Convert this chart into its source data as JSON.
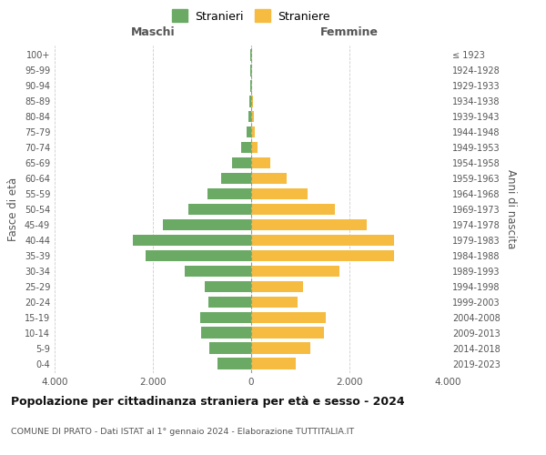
{
  "age_groups": [
    "0-4",
    "5-9",
    "10-14",
    "15-19",
    "20-24",
    "25-29",
    "30-34",
    "35-39",
    "40-44",
    "45-49",
    "50-54",
    "55-59",
    "60-64",
    "65-69",
    "70-74",
    "75-79",
    "80-84",
    "85-89",
    "90-94",
    "95-99",
    "100+"
  ],
  "birth_years": [
    "2019-2023",
    "2014-2018",
    "2009-2013",
    "2004-2008",
    "1999-2003",
    "1994-1998",
    "1989-1993",
    "1984-1988",
    "1979-1983",
    "1974-1978",
    "1969-1973",
    "1964-1968",
    "1959-1963",
    "1954-1958",
    "1949-1953",
    "1944-1948",
    "1939-1943",
    "1934-1938",
    "1929-1933",
    "1924-1928",
    "≤ 1923"
  ],
  "males": [
    680,
    850,
    1020,
    1030,
    870,
    940,
    1350,
    2150,
    2400,
    1800,
    1280,
    890,
    620,
    380,
    200,
    90,
    60,
    30,
    15,
    10,
    10
  ],
  "females": [
    900,
    1200,
    1480,
    1520,
    940,
    1050,
    1800,
    2900,
    2900,
    2350,
    1700,
    1150,
    730,
    380,
    130,
    80,
    60,
    30,
    15,
    10,
    10
  ],
  "male_color": "#6aaa64",
  "female_color": "#f5bc41",
  "background_color": "#ffffff",
  "grid_color": "#cccccc",
  "title": "Popolazione per cittadinanza straniera per età e sesso - 2024",
  "subtitle": "COMUNE DI PRATO - Dati ISTAT al 1° gennaio 2024 - Elaborazione TUTTITALIA.IT",
  "xlabel_left": "Maschi",
  "xlabel_right": "Femmine",
  "ylabel_left": "Fasce di età",
  "ylabel_right": "Anni di nascita",
  "legend_male": "Stranieri",
  "legend_female": "Straniere",
  "xlim": 4000,
  "xtick_labels": [
    "4.000",
    "2.000",
    "0",
    "2.000",
    "4.000"
  ]
}
